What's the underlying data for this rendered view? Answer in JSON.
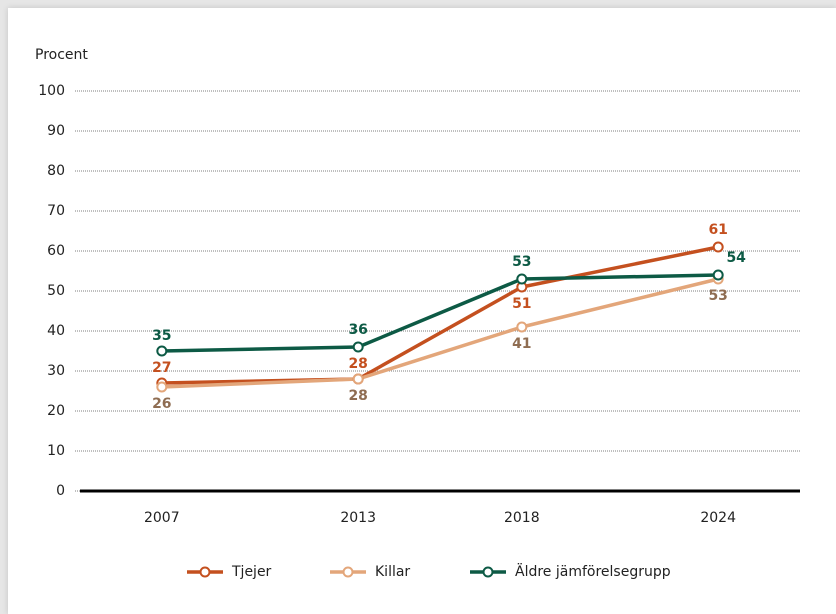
{
  "chart_data": {
    "type": "line",
    "y_label": "Procent",
    "x": [
      2007,
      2013,
      2018,
      2024
    ],
    "xlim": [
      2004.5,
      2026.5
    ],
    "xticks": [
      2007,
      2013,
      2018,
      2024
    ],
    "ylim": [
      0,
      100
    ],
    "yticks": [
      0,
      10,
      20,
      30,
      40,
      50,
      60,
      70,
      80,
      90,
      100
    ],
    "grid": true,
    "series": [
      {
        "name": "Tjejer",
        "color": "#c4501f",
        "label_color": "#c4501f",
        "values": [
          27,
          28,
          51,
          61
        ]
      },
      {
        "name": "Killar",
        "color": "#e3a67a",
        "label_color": "#8f6d52",
        "values": [
          26,
          28,
          41,
          53
        ]
      },
      {
        "name": "Äldre jämförelsegrupp",
        "color": "#0d5a45",
        "label_color": "#0d5a45",
        "values": [
          35,
          36,
          53,
          54
        ]
      }
    ],
    "legend": "bottom"
  }
}
